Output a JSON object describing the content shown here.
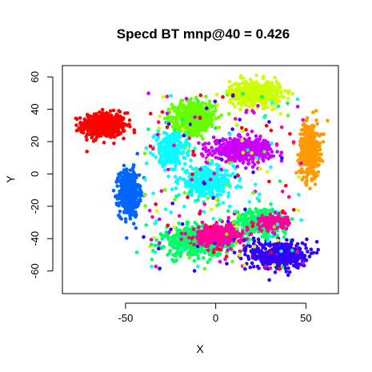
{
  "chart_data": {
    "type": "scatter",
    "title": "Specd BT mnp@40 = 0.426",
    "xlabel": "X",
    "ylabel": "Y",
    "xlim": [
      -85,
      68
    ],
    "ylim": [
      -74,
      67
    ],
    "xticks": [
      -50,
      0,
      50
    ],
    "yticks": [
      -60,
      -40,
      -20,
      0,
      20,
      40,
      60
    ],
    "grid": false,
    "legend": "none",
    "clusters": [
      {
        "color": "#ff0000",
        "center": [
          -62,
          30
        ],
        "spread": [
          11,
          7
        ],
        "count": 520
      },
      {
        "color": "#0066ff",
        "center": [
          -48,
          -12
        ],
        "spread": [
          5,
          13
        ],
        "count": 480
      },
      {
        "color": "#66ff00",
        "center": [
          -12,
          35
        ],
        "spread": [
          11,
          9
        ],
        "count": 480
      },
      {
        "color": "#ccff00",
        "center": [
          22,
          50
        ],
        "spread": [
          13,
          7
        ],
        "count": 450
      },
      {
        "color": "#ff9900",
        "center": [
          52,
          15
        ],
        "spread": [
          5,
          15
        ],
        "count": 420
      },
      {
        "color": "#00ffff",
        "center": [
          -25,
          15
        ],
        "spread": [
          8,
          9
        ],
        "count": 260
      },
      {
        "color": "#00ffff",
        "center": [
          -5,
          -5
        ],
        "spread": [
          14,
          8
        ],
        "count": 380
      },
      {
        "color": "#cc00ff",
        "center": [
          15,
          15
        ],
        "spread": [
          15,
          6
        ],
        "count": 500
      },
      {
        "color": "#00ff66",
        "center": [
          -10,
          -42
        ],
        "spread": [
          17,
          8
        ],
        "count": 520
      },
      {
        "color": "#00ff66",
        "center": [
          25,
          -30
        ],
        "spread": [
          13,
          8
        ],
        "count": 280
      },
      {
        "color": "#ff0099",
        "center": [
          2,
          -38
        ],
        "spread": [
          13,
          6
        ],
        "count": 330
      },
      {
        "color": "#ff0099",
        "center": [
          32,
          -30
        ],
        "spread": [
          7,
          4
        ],
        "count": 150
      },
      {
        "color": "#3300ff",
        "center": [
          35,
          -50
        ],
        "spread": [
          14,
          8
        ],
        "count": 450
      }
    ],
    "scatter_noise": {
      "count": 260,
      "colors": [
        "#cc00ff",
        "#ff0099",
        "#3300ff",
        "#66ff00",
        "#00ffff",
        "#ccff00",
        "#00ff66",
        "#ff0000"
      ]
    }
  }
}
